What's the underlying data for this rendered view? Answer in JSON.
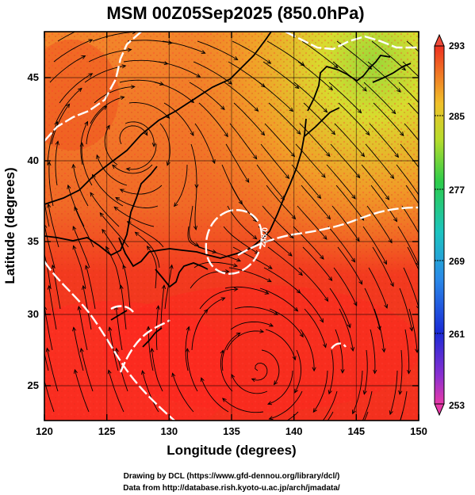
{
  "title": "MSM 00Z05Sep2025 (850.0hPa)",
  "x_label": "Longitude (degrees)",
  "y_label": "Latitude  (degrees)",
  "x_ticks": [
    "120",
    "125",
    "130",
    "135",
    "140",
    "145",
    "150"
  ],
  "y_ticks": [
    "25",
    "30",
    "35",
    "40",
    "45"
  ],
  "colorbar_ticks": [
    "293",
    "285",
    "277",
    "269",
    "261",
    "253"
  ],
  "contour_label": "288.0",
  "credit_line1": "Drawing by DCL (https://www.gfd-dennou.org/library/dcl/)",
  "credit_line2": "Data from http://database.rish.kyoto-u.ac.jp/arch/jmadata/",
  "colors": {
    "warm": "#ee2a1e",
    "hot": "#ff2020",
    "mid": "#ff8a1e",
    "cool": "#d6dc2a",
    "green": "#7fd43a"
  }
}
